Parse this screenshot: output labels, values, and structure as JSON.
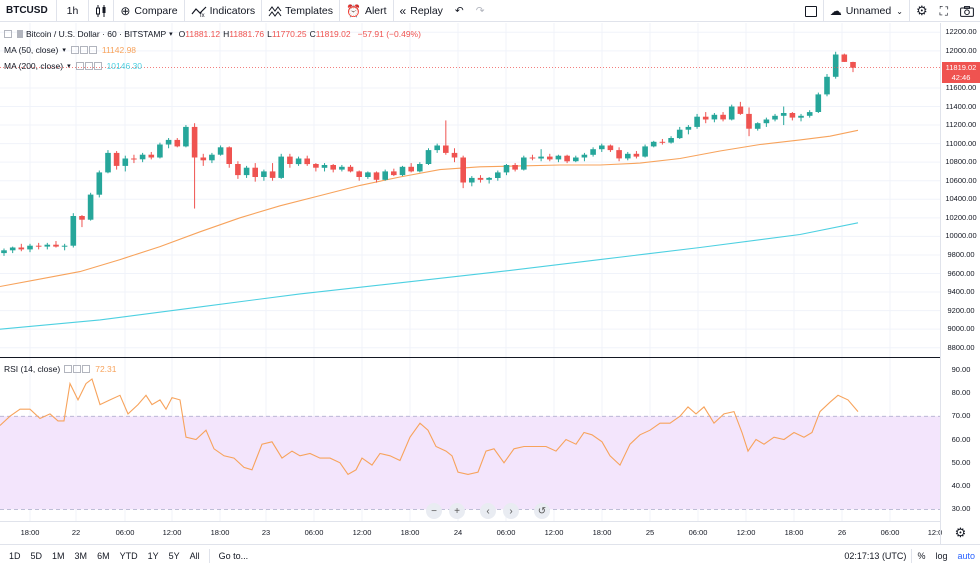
{
  "toolbar": {
    "symbol": "BTCUSD",
    "interval": "1h",
    "compare_label": "Compare",
    "indicators_label": "Indicators",
    "templates_label": "Templates",
    "alert_label": "Alert",
    "replay_label": "Replay",
    "layout_name": "Unnamed"
  },
  "legend": {
    "title": "Bitcoin / U.S. Dollar · 60 · BITSTAMP",
    "open_key": "O",
    "open": "11881.12",
    "high_key": "H",
    "high": "11881.76",
    "low_key": "L",
    "low": "11770.25",
    "close_key": "C",
    "close": "11819.02",
    "change": "−57.91 (−0.49%)",
    "ma50_label": "MA (50, close)",
    "ma50_value": "11142.98",
    "ma200_label": "MA (200, close)",
    "ma200_value": "10146.30",
    "rsi_label": "RSI (14, close)",
    "rsi_value": "72.31"
  },
  "colors": {
    "up": "#26a69a",
    "down": "#ef5350",
    "ma50": "#f7a35c",
    "ma200": "#4dd0e1",
    "rsi_line": "#f7a35c",
    "rsi_band": "#f3e5fc"
  },
  "price_axis": {
    "ticks": [
      "12200.00",
      "12000.00",
      "11600.00",
      "11400.00",
      "11200.00",
      "11000.00",
      "10800.00",
      "10600.00",
      "10400.00",
      "10200.00",
      "10000.00",
      "9800.00",
      "9600.00",
      "9400.00",
      "9200.00",
      "9000.00",
      "8800.00"
    ],
    "last_price": "11819.02",
    "countdown": "42:46"
  },
  "rsi_axis": {
    "ticks": [
      "90.00",
      "80.00",
      "70.00",
      "60.00",
      "50.00",
      "40.00",
      "30.00"
    ]
  },
  "time_axis": {
    "ticks": [
      "18:00",
      "22",
      "06:00",
      "12:00",
      "18:00",
      "23",
      "06:00",
      "12:00",
      "18:00",
      "24",
      "06:00",
      "12:00",
      "18:00",
      "25",
      "06:00",
      "12:00",
      "18:00",
      "26",
      "06:00",
      "12:0"
    ]
  },
  "bottom": {
    "ranges": [
      "1D",
      "5D",
      "1M",
      "3M",
      "6M",
      "YTD",
      "1Y",
      "5Y",
      "All"
    ],
    "goto_label": "Go to...",
    "clock": "02:17:13 (UTC)",
    "percent_label": "%",
    "log_label": "log",
    "auto_label": "auto"
  },
  "chart_data": {
    "type": "candlestick",
    "symbol": "BTCUSD",
    "interval": "60",
    "price_range": [
      8700,
      12300
    ],
    "candles": [
      [
        9820,
        9870,
        9790,
        9850
      ],
      [
        9850,
        9890,
        9820,
        9880
      ],
      [
        9880,
        9920,
        9840,
        9860
      ],
      [
        9860,
        9920,
        9830,
        9900
      ],
      [
        9900,
        9930,
        9860,
        9890
      ],
      [
        9890,
        9930,
        9860,
        9910
      ],
      [
        9910,
        9950,
        9880,
        9890
      ],
      [
        9890,
        9920,
        9850,
        9900
      ],
      [
        9900,
        10250,
        9880,
        10220
      ],
      [
        10220,
        10230,
        10100,
        10180
      ],
      [
        10180,
        10470,
        10170,
        10450
      ],
      [
        10450,
        10710,
        10420,
        10690
      ],
      [
        10690,
        10930,
        10680,
        10900
      ],
      [
        10900,
        10920,
        10720,
        10760
      ],
      [
        10760,
        10870,
        10700,
        10840
      ],
      [
        10840,
        10880,
        10790,
        10830
      ],
      [
        10830,
        10900,
        10800,
        10880
      ],
      [
        10880,
        10910,
        10830,
        10850
      ],
      [
        10850,
        11010,
        10840,
        10990
      ],
      [
        10990,
        11060,
        10950,
        11040
      ],
      [
        11040,
        11060,
        10960,
        10970
      ],
      [
        10970,
        11200,
        10960,
        11180
      ],
      [
        11180,
        11220,
        10300,
        10850
      ],
      [
        10850,
        10890,
        10760,
        10820
      ],
      [
        10820,
        10900,
        10790,
        10880
      ],
      [
        10880,
        10980,
        10870,
        10960
      ],
      [
        10960,
        10970,
        10740,
        10780
      ],
      [
        10780,
        10810,
        10620,
        10660
      ],
      [
        10660,
        10760,
        10630,
        10740
      ],
      [
        10740,
        10790,
        10590,
        10640
      ],
      [
        10640,
        10720,
        10600,
        10700
      ],
      [
        10700,
        10790,
        10600,
        10630
      ],
      [
        10630,
        10890,
        10620,
        10860
      ],
      [
        10860,
        10890,
        10740,
        10780
      ],
      [
        10780,
        10860,
        10760,
        10840
      ],
      [
        10840,
        10870,
        10760,
        10780
      ],
      [
        10780,
        10790,
        10700,
        10740
      ],
      [
        10740,
        10790,
        10700,
        10770
      ],
      [
        10770,
        10780,
        10690,
        10720
      ],
      [
        10720,
        10770,
        10700,
        10750
      ],
      [
        10750,
        10770,
        10690,
        10700
      ],
      [
        10700,
        10710,
        10600,
        10640
      ],
      [
        10640,
        10700,
        10620,
        10690
      ],
      [
        10690,
        10700,
        10580,
        10610
      ],
      [
        10610,
        10720,
        10600,
        10700
      ],
      [
        10700,
        10730,
        10650,
        10660
      ],
      [
        10660,
        10760,
        10650,
        10750
      ],
      [
        10750,
        10790,
        10690,
        10700
      ],
      [
        10700,
        10800,
        10690,
        10780
      ],
      [
        10780,
        10950,
        10770,
        10930
      ],
      [
        10930,
        11000,
        10900,
        10980
      ],
      [
        10980,
        11250,
        10880,
        10900
      ],
      [
        10900,
        10950,
        10800,
        10850
      ],
      [
        10850,
        10870,
        10520,
        10580
      ],
      [
        10580,
        10650,
        10540,
        10630
      ],
      [
        10630,
        10660,
        10580,
        10610
      ],
      [
        10610,
        10640,
        10570,
        10630
      ],
      [
        10630,
        10710,
        10600,
        10690
      ],
      [
        10690,
        10780,
        10660,
        10770
      ],
      [
        10770,
        10790,
        10700,
        10720
      ],
      [
        10720,
        10870,
        10710,
        10850
      ],
      [
        10850,
        10880,
        10820,
        10840
      ],
      [
        10840,
        10940,
        10810,
        10860
      ],
      [
        10860,
        10890,
        10810,
        10830
      ],
      [
        10830,
        10880,
        10800,
        10870
      ],
      [
        10870,
        10880,
        10790,
        10810
      ],
      [
        10810,
        10870,
        10800,
        10850
      ],
      [
        10850,
        10900,
        10810,
        10880
      ],
      [
        10880,
        10960,
        10860,
        10940
      ],
      [
        10940,
        11000,
        10910,
        10980
      ],
      [
        10980,
        10990,
        10910,
        10930
      ],
      [
        10930,
        10960,
        10810,
        10840
      ],
      [
        10840,
        10910,
        10820,
        10890
      ],
      [
        10890,
        10920,
        10840,
        10860
      ],
      [
        10860,
        10990,
        10850,
        10970
      ],
      [
        10970,
        11030,
        10960,
        11020
      ],
      [
        11020,
        11050,
        10990,
        11010
      ],
      [
        11010,
        11080,
        11000,
        11060
      ],
      [
        11060,
        11180,
        11050,
        11150
      ],
      [
        11150,
        11200,
        11100,
        11180
      ],
      [
        11180,
        11320,
        11160,
        11290
      ],
      [
        11290,
        11340,
        11220,
        11260
      ],
      [
        11260,
        11330,
        11230,
        11310
      ],
      [
        11310,
        11340,
        11240,
        11260
      ],
      [
        11260,
        11420,
        11250,
        11400
      ],
      [
        11400,
        11450,
        11310,
        11320
      ],
      [
        11320,
        11390,
        11080,
        11160
      ],
      [
        11160,
        11230,
        11140,
        11220
      ],
      [
        11220,
        11280,
        11180,
        11260
      ],
      [
        11260,
        11320,
        11240,
        11300
      ],
      [
        11300,
        11400,
        11200,
        11330
      ],
      [
        11330,
        11340,
        11250,
        11280
      ],
      [
        11280,
        11320,
        11240,
        11300
      ],
      [
        11300,
        11360,
        11280,
        11340
      ],
      [
        11340,
        11550,
        11330,
        11530
      ],
      [
        11530,
        11750,
        11510,
        11720
      ],
      [
        11720,
        11990,
        11700,
        11960
      ],
      [
        11960,
        11970,
        11880,
        11880
      ],
      [
        11880,
        11882,
        11770,
        11819
      ]
    ],
    "ma50": [
      [
        0,
        9460
      ],
      [
        40,
        9540
      ],
      [
        80,
        9620
      ],
      [
        120,
        9750
      ],
      [
        160,
        9890
      ],
      [
        200,
        10050
      ],
      [
        240,
        10200
      ],
      [
        280,
        10330
      ],
      [
        320,
        10440
      ],
      [
        360,
        10550
      ],
      [
        400,
        10640
      ],
      [
        440,
        10720
      ],
      [
        480,
        10750
      ],
      [
        520,
        10760
      ],
      [
        560,
        10770
      ],
      [
        600,
        10770
      ],
      [
        640,
        10790
      ],
      [
        680,
        10840
      ],
      [
        720,
        10920
      ],
      [
        760,
        10990
      ],
      [
        800,
        11040
      ],
      [
        830,
        11080
      ],
      [
        858,
        11143
      ]
    ],
    "ma200": [
      [
        0,
        9000
      ],
      [
        100,
        9100
      ],
      [
        200,
        9240
      ],
      [
        300,
        9380
      ],
      [
        400,
        9500
      ],
      [
        500,
        9620
      ],
      [
        600,
        9750
      ],
      [
        700,
        9880
      ],
      [
        800,
        10020
      ],
      [
        858,
        10146
      ]
    ],
    "rsi_range": [
      25,
      95
    ],
    "rsi": [
      [
        0,
        66
      ],
      [
        10,
        70
      ],
      [
        20,
        73
      ],
      [
        30,
        73
      ],
      [
        40,
        69
      ],
      [
        50,
        71
      ],
      [
        58,
        68
      ],
      [
        64,
        68
      ],
      [
        70,
        84
      ],
      [
        78,
        77
      ],
      [
        86,
        84
      ],
      [
        92,
        86
      ],
      [
        100,
        75
      ],
      [
        110,
        77
      ],
      [
        120,
        79
      ],
      [
        128,
        71
      ],
      [
        138,
        75
      ],
      [
        146,
        79
      ],
      [
        152,
        75
      ],
      [
        160,
        77
      ],
      [
        166,
        73
      ],
      [
        172,
        78
      ],
      [
        180,
        77
      ],
      [
        186,
        61
      ],
      [
        196,
        60
      ],
      [
        206,
        64
      ],
      [
        214,
        56
      ],
      [
        224,
        53
      ],
      [
        234,
        52
      ],
      [
        244,
        48
      ],
      [
        252,
        47
      ],
      [
        262,
        58
      ],
      [
        272,
        59
      ],
      [
        282,
        52
      ],
      [
        292,
        55
      ],
      [
        300,
        53
      ],
      [
        310,
        54
      ],
      [
        320,
        52
      ],
      [
        330,
        52
      ],
      [
        340,
        50
      ],
      [
        348,
        45
      ],
      [
        356,
        47
      ],
      [
        362,
        52
      ],
      [
        372,
        49
      ],
      [
        380,
        54
      ],
      [
        390,
        53
      ],
      [
        400,
        51
      ],
      [
        410,
        61
      ],
      [
        420,
        67
      ],
      [
        428,
        64
      ],
      [
        436,
        57
      ],
      [
        446,
        55
      ],
      [
        452,
        53
      ],
      [
        458,
        46
      ],
      [
        468,
        45
      ],
      [
        478,
        46
      ],
      [
        486,
        55
      ],
      [
        494,
        56
      ],
      [
        504,
        50
      ],
      [
        514,
        56
      ],
      [
        524,
        57
      ],
      [
        534,
        57
      ],
      [
        546,
        57
      ],
      [
        556,
        55
      ],
      [
        566,
        60
      ],
      [
        576,
        58
      ],
      [
        584,
        63
      ],
      [
        592,
        62
      ],
      [
        602,
        59
      ],
      [
        610,
        53
      ],
      [
        620,
        49
      ],
      [
        630,
        58
      ],
      [
        640,
        62
      ],
      [
        650,
        64
      ],
      [
        660,
        67
      ],
      [
        670,
        67
      ],
      [
        680,
        70
      ],
      [
        688,
        74
      ],
      [
        696,
        71
      ],
      [
        704,
        74
      ],
      [
        714,
        67
      ],
      [
        724,
        71
      ],
      [
        734,
        72
      ],
      [
        742,
        63
      ],
      [
        748,
        55
      ],
      [
        756,
        60
      ],
      [
        764,
        58
      ],
      [
        774,
        61
      ],
      [
        784,
        60
      ],
      [
        794,
        63
      ],
      [
        804,
        61
      ],
      [
        812,
        63
      ],
      [
        820,
        72
      ],
      [
        830,
        76
      ],
      [
        838,
        79
      ],
      [
        848,
        77
      ],
      [
        858,
        72
      ]
    ]
  }
}
